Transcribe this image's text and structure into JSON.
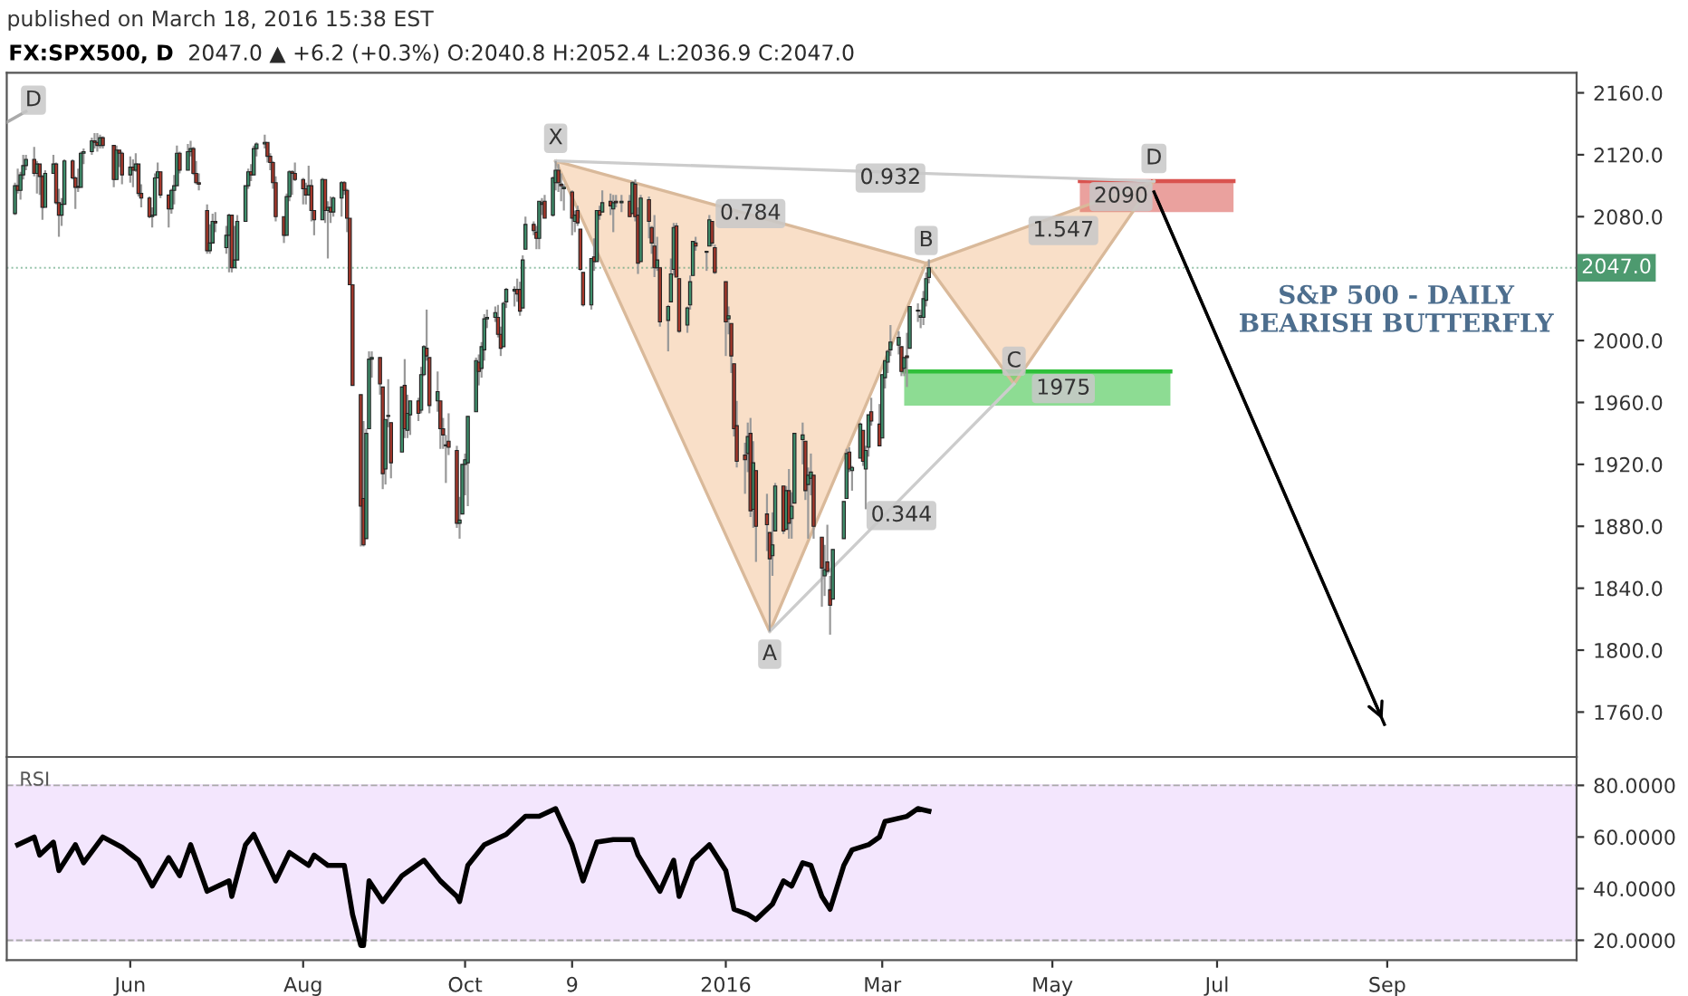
{
  "chart_data": [
    {
      "type": "candlestick",
      "title": "FX:SPX500, D",
      "subtitle": "2047.0 ▲ +6.2 (+0.3%) O:2040.8 H:2052.4 L:2036.9 C:2047.0",
      "x": [
        "2015-04-20",
        "2015-04-21",
        "2015-04-22",
        "2015-04-23",
        "2015-04-24",
        "2015-04-27",
        "2015-04-28",
        "2015-04-29",
        "2015-04-30",
        "2015-05-01",
        "2015-05-04",
        "2015-05-05",
        "2015-05-06",
        "2015-05-07",
        "2015-05-08",
        "2015-05-11",
        "2015-05-12",
        "2015-05-13",
        "2015-05-14",
        "2015-05-15",
        "2015-05-18",
        "2015-05-19",
        "2015-05-20",
        "2015-05-21",
        "2015-05-22",
        "2015-05-26",
        "2015-05-27",
        "2015-05-28",
        "2015-05-29",
        "2015-06-01",
        "2015-06-02",
        "2015-06-03",
        "2015-06-04",
        "2015-06-05",
        "2015-06-08",
        "2015-06-09",
        "2015-06-10",
        "2015-06-11",
        "2015-06-12",
        "2015-06-15",
        "2015-06-16",
        "2015-06-17",
        "2015-06-18",
        "2015-06-19",
        "2015-06-22",
        "2015-06-23",
        "2015-06-24",
        "2015-06-25",
        "2015-06-26",
        "2015-06-29",
        "2015-06-30",
        "2015-07-01",
        "2015-07-02",
        "2015-07-06",
        "2015-07-07",
        "2015-07-08",
        "2015-07-09",
        "2015-07-10",
        "2015-07-13",
        "2015-07-14",
        "2015-07-15",
        "2015-07-16",
        "2015-07-17",
        "2015-07-20",
        "2015-07-21",
        "2015-07-22",
        "2015-07-23",
        "2015-07-24",
        "2015-07-27",
        "2015-07-28",
        "2015-07-29",
        "2015-07-30",
        "2015-07-31",
        "2015-08-03",
        "2015-08-04",
        "2015-08-05",
        "2015-08-06",
        "2015-08-07",
        "2015-08-10",
        "2015-08-11",
        "2015-08-12",
        "2015-08-13",
        "2015-08-14",
        "2015-08-17",
        "2015-08-18",
        "2015-08-19",
        "2015-08-20",
        "2015-08-21",
        "2015-08-24",
        "2015-08-25",
        "2015-08-26",
        "2015-08-27",
        "2015-08-28",
        "2015-08-31",
        "2015-09-01",
        "2015-09-02",
        "2015-09-03",
        "2015-09-04",
        "2015-09-08",
        "2015-09-09",
        "2015-09-10",
        "2015-09-11",
        "2015-09-14",
        "2015-09-15",
        "2015-09-16",
        "2015-09-17",
        "2015-09-18",
        "2015-09-21",
        "2015-09-22",
        "2015-09-23",
        "2015-09-24",
        "2015-09-25",
        "2015-09-28",
        "2015-09-29",
        "2015-09-30",
        "2015-10-01",
        "2015-10-02",
        "2015-10-05",
        "2015-10-06",
        "2015-10-07",
        "2015-10-08",
        "2015-10-09",
        "2015-10-12",
        "2015-10-13",
        "2015-10-14",
        "2015-10-15",
        "2015-10-16",
        "2015-10-19",
        "2015-10-20",
        "2015-10-21",
        "2015-10-22",
        "2015-10-23",
        "2015-10-26",
        "2015-10-27",
        "2015-10-28",
        "2015-10-29",
        "2015-10-30",
        "2015-11-02",
        "2015-11-03",
        "2015-11-04",
        "2015-11-05",
        "2015-11-06",
        "2015-11-09",
        "2015-11-10",
        "2015-11-11",
        "2015-11-12",
        "2015-11-13",
        "2015-11-16",
        "2015-11-17",
        "2015-11-18",
        "2015-11-19",
        "2015-11-20",
        "2015-11-23",
        "2015-11-24",
        "2015-11-25",
        "2015-11-27",
        "2015-11-30",
        "2015-12-01",
        "2015-12-02",
        "2015-12-03",
        "2015-12-04",
        "2015-12-07",
        "2015-12-08",
        "2015-12-09",
        "2015-12-10",
        "2015-12-11",
        "2015-12-14",
        "2015-12-15",
        "2015-12-16",
        "2015-12-17",
        "2015-12-18",
        "2015-12-21",
        "2015-12-22",
        "2015-12-23",
        "2015-12-24",
        "2015-12-28",
        "2015-12-29",
        "2015-12-30",
        "2015-12-31",
        "2016-01-04",
        "2016-01-05",
        "2016-01-06",
        "2016-01-07",
        "2016-01-08",
        "2016-01-11",
        "2016-01-12",
        "2016-01-13",
        "2016-01-14",
        "2016-01-15",
        "2016-01-19",
        "2016-01-20",
        "2016-01-21",
        "2016-01-22",
        "2016-01-25",
        "2016-01-26",
        "2016-01-27",
        "2016-01-28",
        "2016-01-29",
        "2016-02-01",
        "2016-02-02",
        "2016-02-03",
        "2016-02-04",
        "2016-02-05",
        "2016-02-08",
        "2016-02-09",
        "2016-02-10",
        "2016-02-11",
        "2016-02-12",
        "2016-02-16",
        "2016-02-17",
        "2016-02-18",
        "2016-02-19",
        "2016-02-22",
        "2016-02-23",
        "2016-02-24",
        "2016-02-25",
        "2016-02-26",
        "2016-02-29",
        "2016-03-01",
        "2016-03-02",
        "2016-03-03",
        "2016-03-04",
        "2016-03-07",
        "2016-03-08",
        "2016-03-09",
        "2016-03-10",
        "2016-03-11",
        "2016-03-14",
        "2016-03-15",
        "2016-03-16",
        "2016-03-17",
        "2016-03-18"
      ],
      "ohlc": [
        [
          2082,
          2102,
          2081,
          2100
        ],
        [
          2100,
          2111,
          2095,
          2097
        ],
        [
          2097,
          2109,
          2091,
          2107
        ],
        [
          2107,
          2120,
          2104,
          2113
        ],
        [
          2113,
          2120,
          2110,
          2117
        ],
        [
          2117,
          2125,
          2106,
          2108
        ],
        [
          2108,
          2116,
          2095,
          2114
        ],
        [
          2114,
          2114,
          2094,
          2106
        ],
        [
          2106,
          2107,
          2078,
          2086
        ],
        [
          2086,
          2110,
          2086,
          2108
        ],
        [
          2108,
          2120,
          2108,
          2114
        ],
        [
          2114,
          2115,
          2088,
          2089
        ],
        [
          2089,
          2098,
          2067,
          2081
        ],
        [
          2081,
          2092,
          2074,
          2088
        ],
        [
          2088,
          2117,
          2088,
          2116
        ],
        [
          2116,
          2117,
          2104,
          2105
        ],
        [
          2105,
          2106,
          2085,
          2099
        ],
        [
          2099,
          2111,
          2096,
          2099
        ],
        [
          2099,
          2122,
          2099,
          2121
        ],
        [
          2121,
          2124,
          2114,
          2122
        ],
        [
          2122,
          2131,
          2120,
          2129
        ],
        [
          2129,
          2134,
          2124,
          2128
        ],
        [
          2128,
          2134,
          2122,
          2126
        ],
        [
          2126,
          2133,
          2124,
          2131
        ],
        [
          2131,
          2132,
          2124,
          2126
        ],
        [
          2126,
          2126,
          2099,
          2104
        ],
        [
          2104,
          2126,
          2104,
          2123
        ],
        [
          2123,
          2123,
          2112,
          2121
        ],
        [
          2121,
          2122,
          2101,
          2107
        ],
        [
          2107,
          2119,
          2102,
          2112
        ],
        [
          2112,
          2117,
          2099,
          2110
        ],
        [
          2110,
          2121,
          2109,
          2114
        ],
        [
          2114,
          2114,
          2093,
          2095
        ],
        [
          2095,
          2101,
          2086,
          2092
        ],
        [
          2092,
          2093,
          2079,
          2080
        ],
        [
          2080,
          2086,
          2073,
          2081
        ],
        [
          2081,
          2108,
          2081,
          2105
        ],
        [
          2105,
          2115,
          2105,
          2109
        ],
        [
          2109,
          2109,
          2092,
          2094
        ],
        [
          2094,
          2094,
          2073,
          2085
        ],
        [
          2085,
          2098,
          2082,
          2097
        ],
        [
          2097,
          2107,
          2088,
          2100
        ],
        [
          2100,
          2126,
          2100,
          2121
        ],
        [
          2121,
          2122,
          2108,
          2110
        ],
        [
          2110,
          2127,
          2110,
          2122
        ],
        [
          2122,
          2129,
          2119,
          2124
        ],
        [
          2124,
          2125,
          2107,
          2108
        ],
        [
          2108,
          2116,
          2101,
          2102
        ],
        [
          2102,
          2108,
          2097,
          2101
        ],
        [
          2084,
          2088,
          2056,
          2058
        ],
        [
          2058,
          2075,
          2056,
          2063
        ],
        [
          2063,
          2082,
          2063,
          2077
        ],
        [
          2077,
          2083,
          2070,
          2076
        ],
        [
          2060,
          2074,
          2056,
          2068
        ],
        [
          2068,
          2082,
          2044,
          2081
        ],
        [
          2081,
          2081,
          2044,
          2047
        ],
        [
          2047,
          2074,
          2047,
          2052
        ],
        [
          2052,
          2081,
          2052,
          2077
        ],
        [
          2077,
          2100,
          2077,
          2100
        ],
        [
          2100,
          2111,
          2098,
          2109
        ],
        [
          2109,
          2114,
          2103,
          2107
        ],
        [
          2107,
          2126,
          2107,
          2124
        ],
        [
          2124,
          2128,
          2119,
          2127
        ],
        [
          2127,
          2133,
          2124,
          2128
        ],
        [
          2128,
          2128,
          2115,
          2119
        ],
        [
          2119,
          2121,
          2110,
          2115
        ],
        [
          2115,
          2116,
          2098,
          2102
        ],
        [
          2102,
          2106,
          2077,
          2080
        ],
        [
          2080,
          2080,
          2063,
          2068
        ],
        [
          2068,
          2095,
          2068,
          2093
        ],
        [
          2093,
          2110,
          2090,
          2109
        ],
        [
          2109,
          2110,
          2094,
          2108
        ],
        [
          2108,
          2115,
          2103,
          2104
        ],
        [
          2104,
          2105,
          2088,
          2098
        ],
        [
          2098,
          2102,
          2088,
          2094
        ],
        [
          2094,
          2113,
          2094,
          2100
        ],
        [
          2100,
          2104,
          2077,
          2084
        ],
        [
          2084,
          2084,
          2068,
          2078
        ],
        [
          2078,
          2105,
          2078,
          2104
        ],
        [
          2104,
          2104,
          2076,
          2084
        ],
        [
          2084,
          2090,
          2053,
          2086
        ],
        [
          2086,
          2093,
          2076,
          2083
        ],
        [
          2083,
          2093,
          2080,
          2092
        ],
        [
          2092,
          2103,
          2080,
          2102
        ],
        [
          2102,
          2103,
          2094,
          2097
        ],
        [
          2097,
          2098,
          2070,
          2079
        ],
        [
          2079,
          2079,
          2036,
          2036
        ],
        [
          2036,
          2036,
          1971,
          1971
        ],
        [
          1965,
          1965,
          1867,
          1893
        ],
        [
          1898,
          1948,
          1867,
          1868
        ],
        [
          1872,
          1943,
          1872,
          1940
        ],
        [
          1943,
          1993,
          1943,
          1988
        ],
        [
          1988,
          1993,
          1976,
          1989
        ],
        [
          1989,
          1989,
          1965,
          1972
        ],
        [
          1970,
          1970,
          1904,
          1914
        ],
        [
          1917,
          1949,
          1907,
          1949
        ],
        [
          1951,
          1975,
          1944,
          1951
        ],
        [
          1947,
          1947,
          1911,
          1921
        ],
        [
          1928,
          1970,
          1928,
          1970
        ],
        [
          1971,
          1988,
          1937,
          1943
        ],
        [
          1942,
          1965,
          1937,
          1953
        ],
        [
          1952,
          1961,
          1939,
          1961
        ],
        [
          1961,
          1963,
          1948,
          1953
        ],
        [
          1955,
          1983,
          1953,
          1978
        ],
        [
          1978,
          1997,
          1977,
          1996
        ],
        [
          1995,
          2020,
          1987,
          1990
        ],
        [
          1989,
          1989,
          1953,
          1958
        ],
        [
          1961,
          1980,
          1954,
          1967
        ],
        [
          1961,
          1961,
          1930,
          1943
        ],
        [
          1943,
          1950,
          1930,
          1939
        ],
        [
          1932,
          1939,
          1908,
          1932
        ],
        [
          1935,
          1953,
          1926,
          1931
        ],
        [
          1929,
          1932,
          1879,
          1882
        ],
        [
          1882,
          1899,
          1872,
          1884
        ],
        [
          1888,
          1920,
          1888,
          1920
        ],
        [
          1920,
          1927,
          1900,
          1923
        ],
        [
          1921,
          1951,
          1893,
          1951
        ],
        [
          1954,
          1989,
          1954,
          1987
        ],
        [
          1986,
          1991,
          1971,
          1980
        ],
        [
          1982,
          1999,
          1976,
          1996
        ],
        [
          1994,
          2017,
          1987,
          2014
        ],
        [
          2014,
          2020,
          2008,
          2015
        ],
        [
          2015,
          2022,
          2012,
          2018
        ],
        [
          2015,
          2023,
          2002,
          2004
        ],
        [
          2004,
          2009,
          1990,
          1995
        ],
        [
          1996,
          2025,
          1996,
          2024
        ],
        [
          2025,
          2034,
          2021,
          2033
        ],
        [
          2032,
          2035,
          2022,
          2033
        ],
        [
          2033,
          2040,
          2025,
          2030
        ],
        [
          2033,
          2038,
          2016,
          2019
        ],
        [
          2021,
          2055,
          2021,
          2052
        ],
        [
          2059,
          2080,
          2059,
          2075
        ],
        [
          2075,
          2077,
          2068,
          2071
        ],
        [
          2070,
          2074,
          2059,
          2066
        ],
        [
          2066,
          2090,
          2059,
          2090
        ],
        [
          2088,
          2092,
          2081,
          2089
        ],
        [
          2090,
          2094,
          2079,
          2079
        ],
        [
          2081,
          2106,
          2080,
          2105
        ],
        [
          2102,
          2116,
          2097,
          2110
        ],
        [
          2110,
          2114,
          2096,
          2102
        ],
        [
          2101,
          2108,
          2090,
          2100
        ],
        [
          2098,
          2101,
          2084,
          2099
        ],
        [
          2096,
          2097,
          2068,
          2079
        ],
        [
          2077,
          2084,
          2070,
          2081
        ],
        [
          2084,
          2087,
          2074,
          2076
        ],
        [
          2072,
          2072,
          2045,
          2046
        ],
        [
          2044,
          2044,
          2022,
          2023
        ],
        [
          2023,
          2053,
          2020,
          2053
        ],
        [
          2054,
          2066,
          2045,
          2051
        ],
        [
          2051,
          2084,
          2051,
          2084
        ],
        [
          2084,
          2087,
          2078,
          2081
        ],
        [
          2083,
          2097,
          2083,
          2089
        ],
        [
          2090,
          2095,
          2081,
          2087
        ],
        [
          2085,
          2094,
          2070,
          2089
        ],
        [
          2090,
          2094,
          2086,
          2089
        ],
        [
          2089,
          2094,
          2083,
          2090
        ],
        [
          2090,
          2094,
          2080,
          2080
        ],
        [
          2082,
          2103,
          2082,
          2102
        ],
        [
          2101,
          2104,
          2077,
          2080
        ],
        [
          2081,
          2086,
          2043,
          2050
        ],
        [
          2051,
          2094,
          2051,
          2092
        ],
        [
          2091,
          2093,
          2066,
          2077
        ],
        [
          2073,
          2074,
          2056,
          2063
        ],
        [
          2061,
          2081,
          2041,
          2047
        ],
        [
          2047,
          2067,
          2045,
          2052
        ],
        [
          2047,
          2047,
          2009,
          2012
        ],
        [
          2013,
          2023,
          1993,
          2022
        ],
        [
          2025,
          2053,
          2025,
          2043
        ],
        [
          2046,
          2076,
          2042,
          2073
        ],
        [
          2074,
          2076,
          2041,
          2041
        ],
        [
          2040,
          2040,
          2005,
          2006
        ],
        [
          2010,
          2022,
          2005,
          2021
        ],
        [
          2023,
          2042,
          2020,
          2038
        ],
        [
          2042,
          2064,
          2042,
          2064
        ],
        [
          2063,
          2067,
          2058,
          2061
        ],
        [
          2057,
          2058,
          2045,
          2057
        ],
        [
          2061,
          2081,
          2061,
          2078
        ],
        [
          2077,
          2077,
          2061,
          2063
        ],
        [
          2060,
          2062,
          2043,
          2044
        ],
        [
          2038,
          2038,
          1990,
          2012
        ],
        [
          2014,
          2022,
          2004,
          2016
        ],
        [
          2011,
          2011,
          1979,
          1990
        ],
        [
          1985,
          1985,
          1938,
          1943
        ],
        [
          1945,
          1961,
          1918,
          1922
        ],
        [
          1926,
          1934,
          1901,
          1923
        ],
        [
          1927,
          1947,
          1915,
          1938
        ],
        [
          1940,
          1950,
          1886,
          1890
        ],
        [
          1891,
          1935,
          1879,
          1921
        ],
        [
          1916,
          1916,
          1857,
          1880
        ],
        [
          1888,
          1901,
          1864,
          1881
        ],
        [
          1876,
          1876,
          1812,
          1859
        ],
        [
          1861,
          1889,
          1848,
          1868
        ],
        [
          1877,
          1908,
          1877,
          1906
        ],
        [
          1906,
          1906,
          1875,
          1877
        ],
        [
          1878,
          1906,
          1878,
          1903
        ],
        [
          1903,
          1917,
          1872,
          1882
        ],
        [
          1885,
          1902,
          1872,
          1893
        ],
        [
          1895,
          1940,
          1895,
          1940
        ],
        [
          1936,
          1947,
          1920,
          1939
        ],
        [
          1935,
          1935,
          1897,
          1903
        ],
        [
          1907,
          1918,
          1872,
          1913
        ],
        [
          1911,
          1927,
          1900,
          1915
        ],
        [
          1913,
          1913,
          1872,
          1880
        ],
        [
          1873,
          1873,
          1828,
          1853
        ],
        [
          1848,
          1868,
          1835,
          1852
        ],
        [
          1857,
          1881,
          1850,
          1851
        ],
        [
          1839,
          1848,
          1810,
          1829
        ],
        [
          1833,
          1865,
          1833,
          1865
        ],
        [
          1872,
          1896,
          1872,
          1896
        ],
        [
          1898,
          1930,
          1898,
          1927
        ],
        [
          1928,
          1931,
          1915,
          1917
        ],
        [
          1916,
          1919,
          1903,
          1918
        ],
        [
          1924,
          1947,
          1924,
          1946
        ],
        [
          1942,
          1942,
          1919,
          1922
        ],
        [
          1917,
          1932,
          1891,
          1929
        ],
        [
          1931,
          1952,
          1925,
          1952
        ],
        [
          1954,
          1963,
          1945,
          1948
        ],
        [
          1946,
          1959,
          1932,
          1932
        ],
        [
          1937,
          1978,
          1937,
          1978
        ],
        [
          1976,
          1987,
          1969,
          1987
        ],
        [
          1986,
          1994,
          1979,
          1993
        ],
        [
          1994,
          2010,
          1990,
          1999
        ],
        [
          1997,
          2006,
          1991,
          2002
        ],
        [
          1996,
          1996,
          1977,
          1980
        ],
        [
          1982,
          1989,
          1977,
          1989
        ],
        [
          1990,
          2005,
          1970,
          1989
        ],
        [
          1995,
          2022,
          1995,
          2022
        ],
        [
          2019,
          2024,
          2012,
          2019
        ],
        [
          2015,
          2020,
          2008,
          2016
        ],
        [
          2015,
          2032,
          2010,
          2027
        ],
        [
          2026,
          2044,
          2022,
          2040
        ],
        [
          2040.8,
          2052.4,
          2036.9,
          2047.0
        ]
      ],
      "series": [
        {
          "type": "line",
          "x": [
            "2016-05-12",
            "2016-07-07"
          ],
          "values": [
            2103,
            2103
          ],
          "lower": [
            2083,
            2083
          ],
          "upper": [
            2103,
            2103
          ],
          "color": "#d9534f"
        },
        {
          "type": "line",
          "x": [
            "2016-03-09",
            "2016-06-14"
          ],
          "values": [
            1980,
            1980
          ],
          "lower": [
            1958,
            1958
          ],
          "upper": [
            1980,
            1980
          ],
          "color": "#2fbf3a"
        },
        {
          "type": "line",
          "x": [
            "2015-11-03",
            "2016-01-20",
            "2016-03-17",
            "2016-04-18",
            "2016-06-08"
          ],
          "values": [
            2116,
            1812,
            2050,
            1972,
            2103
          ],
          "color": "#d9b99a"
        },
        {
          "type": "line",
          "x": [
            "2015-11-03",
            "2016-03-17"
          ],
          "values": [
            2116,
            2050
          ],
          "color": "#d9b99a"
        },
        {
          "type": "line",
          "x": [
            "2016-03-17",
            "2016-06-08"
          ],
          "values": [
            2050,
            2103
          ],
          "color": "#d9b99a"
        },
        {
          "type": "line",
          "x": [
            "2015-11-03",
            "2016-06-08"
          ],
          "values": [
            2116,
            2103
          ],
          "color": "#cccccc"
        },
        {
          "type": "line",
          "x": [
            "2016-01-20",
            "2016-04-18"
          ],
          "values": [
            1812,
            1972
          ],
          "color": "#cccccc"
        },
        {
          "type": "line",
          "x": [
            "2015-04-17",
            "2015-04-24"
          ],
          "values": [
            2141,
            2148
          ],
          "color": "#aaaaaa"
        },
        {
          "type": "line",
          "x": [
            "2016-06-08",
            "2016-08-31"
          ],
          "values": [
            2096,
            1752
          ],
          "color": "#000000"
        }
      ],
      "annotations": [
        "S&P 500 - DAILY\nBEARISH BUTTERFLY",
        "published on March 18, 2016 15:38 EST",
        {
          "text": "X",
          "x": "2015-11-03",
          "y": 2116
        },
        {
          "text": "A",
          "x": "2016-01-20",
          "y": 1812
        },
        {
          "text": "B",
          "x": "2016-03-17",
          "y": 2050
        },
        {
          "text": "C",
          "x": "2016-04-18",
          "y": 1972
        },
        {
          "text": "D",
          "x": "2016-06-08",
          "y": 2103
        },
        "D",
        {
          "text": "0.932",
          "x": "2016-03-04",
          "y": 2105
        },
        {
          "text": "0.784",
          "x": "2016-01-13",
          "y": 2082
        },
        {
          "text": "1.547",
          "x": "2016-05-06",
          "y": 2071
        },
        {
          "text": "0.344",
          "x": "2016-03-08",
          "y": 1887
        },
        {
          "text": "2090",
          "x": "2016-05-27",
          "y": 2093
        },
        {
          "text": "1975",
          "x": "2016-05-06",
          "y": 1969
        }
      ],
      "ref_lines": [
        {
          "axis": "y",
          "value": 2047.0,
          "label": "2047.0",
          "color": "#4d9a6f",
          "line_style": "dotted"
        }
      ],
      "xlim": [
        "2015-04-17",
        "2016-11-09"
      ],
      "ylim": [
        1731,
        2173
      ],
      "yticks": [
        {
          "value": 1760,
          "label": "1760.0"
        },
        {
          "value": 1800,
          "label": "1800.0"
        },
        {
          "value": 1840,
          "label": "1840.0"
        },
        {
          "value": 1880,
          "label": "1880.0"
        },
        {
          "value": 1920,
          "label": "1920.0"
        },
        {
          "value": 1960,
          "label": "1960.0"
        },
        {
          "value": 2000,
          "label": "2000.0"
        },
        {
          "value": 2040,
          "label": null
        },
        {
          "value": 2080,
          "label": "2080.0"
        },
        {
          "value": 2120,
          "label": "2120.0"
        },
        {
          "value": 2160,
          "label": "2160.0"
        }
      ],
      "tick_labels": "y",
      "grid": false
    },
    {
      "type": "line",
      "title": "RSI",
      "x": [
        "2015-04-21",
        "2015-04-27",
        "2015-04-29",
        "2015-05-04",
        "2015-05-06",
        "2015-05-12",
        "2015-05-15",
        "2015-05-22",
        "2015-05-29",
        "2015-06-04",
        "2015-06-09",
        "2015-06-15",
        "2015-06-19",
        "2015-06-23",
        "2015-06-29",
        "2015-07-07",
        "2015-07-08",
        "2015-07-13",
        "2015-07-16",
        "2015-07-24",
        "2015-07-29",
        "2015-08-05",
        "2015-08-07",
        "2015-08-12",
        "2015-08-18",
        "2015-08-21",
        "2015-08-24",
        "2015-08-25",
        "2015-08-27",
        "2015-09-01",
        "2015-09-08",
        "2015-09-16",
        "2015-09-22",
        "2015-09-28",
        "2015-09-29",
        "2015-10-02",
        "2015-10-08",
        "2015-10-16",
        "2015-10-23",
        "2015-10-28",
        "2015-11-03",
        "2015-11-09",
        "2015-11-13",
        "2015-11-18",
        "2015-11-24",
        "2015-12-01",
        "2015-12-03",
        "2015-12-11",
        "2015-12-16",
        "2015-12-18",
        "2015-12-23",
        "2015-12-29",
        "2016-01-04",
        "2016-01-07",
        "2016-01-12",
        "2016-01-15",
        "2016-01-21",
        "2016-01-25",
        "2016-01-28",
        "2016-02-01",
        "2016-02-04",
        "2016-02-08",
        "2016-02-11",
        "2016-02-16",
        "2016-02-19",
        "2016-02-25",
        "2016-02-29",
        "2016-03-02",
        "2016-03-10",
        "2016-03-14",
        "2016-03-18"
      ],
      "series": [
        {
          "color": "#000000",
          "values": [
            57,
            60,
            53,
            58,
            47,
            57,
            50,
            60,
            56,
            51,
            41,
            52,
            45,
            57,
            39,
            43,
            37,
            57,
            61,
            43,
            54,
            49,
            53,
            49,
            49,
            30,
            18,
            18,
            43,
            35,
            45,
            51,
            43,
            37,
            35,
            49,
            57,
            61,
            68,
            68,
            71,
            57,
            43,
            58,
            59,
            59,
            53,
            39,
            51,
            37,
            51,
            57,
            47,
            32,
            30,
            28,
            34,
            43,
            41,
            50,
            49,
            37,
            32,
            49,
            55,
            57,
            60,
            66,
            68,
            71,
            70
          ]
        }
      ],
      "bands": [
        {
          "axis": "y",
          "from": 20,
          "to": 80,
          "color": "#f3e6fd"
        }
      ],
      "ref_lines": [
        {
          "axis": "y",
          "value": 20,
          "color": "#aaaaaa",
          "line_style": "dashed"
        },
        {
          "axis": "y",
          "value": 80,
          "color": "#aaaaaa",
          "line_style": "dashed"
        }
      ],
      "xlim": [
        "2015-04-17",
        "2016-11-09"
      ],
      "ylim": [
        12.3,
        91
      ],
      "xticks": [
        {
          "value": "2015-06-01",
          "label": "Jun"
        },
        {
          "value": "2015-08-03",
          "label": "Aug"
        },
        {
          "value": "2015-10-01",
          "label": "Oct"
        },
        {
          "value": "2015-11-09",
          "label": "9"
        },
        {
          "value": "2016-01-04",
          "label": "2016"
        },
        {
          "value": "2016-03-01",
          "label": "Mar"
        },
        {
          "value": "2016-05-02",
          "label": "May"
        },
        {
          "value": "2016-07-01",
          "label": "Jul"
        },
        {
          "value": "2016-09-01",
          "label": "Sep"
        }
      ],
      "yticks": [
        {
          "value": 20,
          "label": "20.0000"
        },
        {
          "value": 40,
          "label": "40.0000"
        },
        {
          "value": 60,
          "label": "60.0000"
        },
        {
          "value": 80,
          "label": "80.0000"
        }
      ],
      "grid": false
    }
  ]
}
